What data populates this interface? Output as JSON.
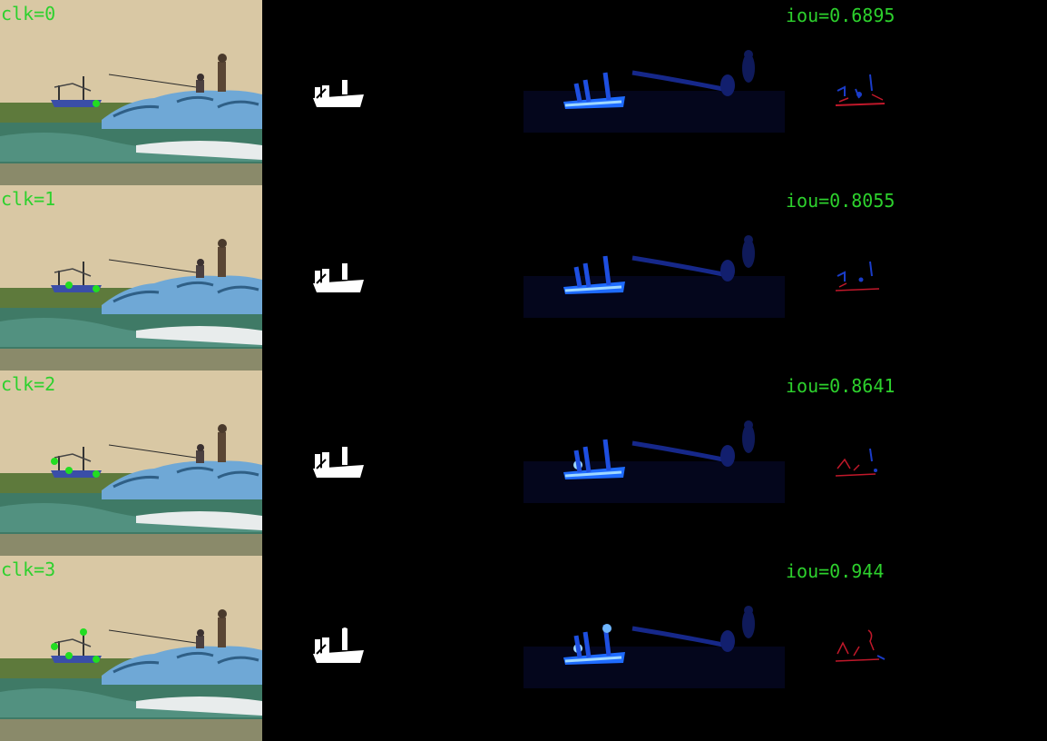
{
  "rows": [
    {
      "clk_label": "clk=0",
      "iou_label": "iou=0.6895"
    },
    {
      "clk_label": "clk=1",
      "iou_label": "iou=0.8055"
    },
    {
      "clk_label": "clk=2",
      "iou_label": "iou=0.8641"
    },
    {
      "clk_label": "clk=3",
      "iou_label": "iou=0.944"
    }
  ],
  "colors": {
    "label_green": "#2dd12d",
    "sky": "#d9c8a4",
    "sea": "#3f7a66",
    "rocks": "#6fa8d6",
    "mask_white": "#ffffff",
    "heat_blue": "#1e6bff",
    "diff_red": "#c0182a",
    "diff_blue": "#1a3cc8"
  }
}
